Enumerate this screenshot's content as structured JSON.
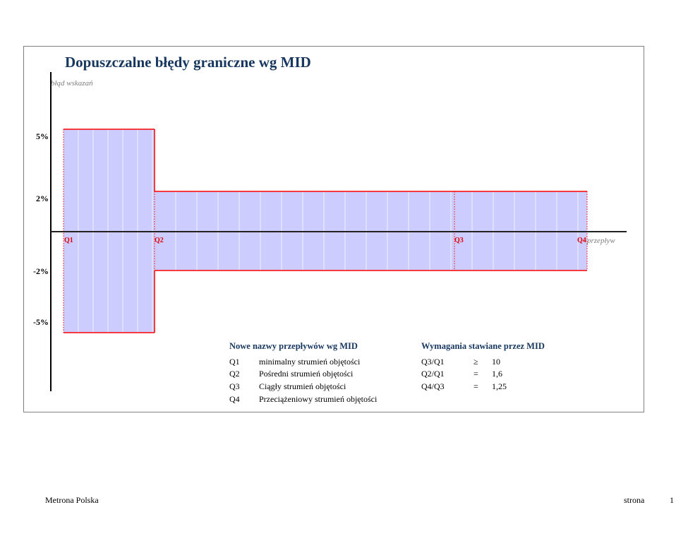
{
  "document": {
    "title": "Dopuszczalne błędy graniczne wg MID",
    "footer_left": "Metrona Polska",
    "footer_page_label": "strona",
    "footer_page_number": "1"
  },
  "chart_data": {
    "type": "area",
    "title": "Dopuszczalne błędy graniczne wg MID",
    "ylabel": "błąd wskazań",
    "xlabel": "przepływ",
    "y_ticks": [
      "5%",
      "2%",
      "-2%",
      "-5%"
    ],
    "x_ticks": [
      "Q1",
      "Q2",
      "Q3",
      "Q4"
    ],
    "ylim": [
      -7,
      8
    ],
    "bands": [
      {
        "from": "Q1",
        "to": "Q2",
        "upper": 5,
        "lower": -5
      },
      {
        "from": "Q2",
        "to": "Q4",
        "upper": 2,
        "lower": -2
      }
    ],
    "fill_color": "#ccccff",
    "edge_color": "#ff0000",
    "axis_color": "#000000"
  },
  "legend_left": {
    "heading": "Nowe nazwy przepływów wg MID",
    "rows": [
      {
        "code": "Q1",
        "desc": "minimalny strumień objętości"
      },
      {
        "code": "Q2",
        "desc": "Pośredni strumień objętości"
      },
      {
        "code": "Q3",
        "desc": "Ciągły strumień objętości"
      },
      {
        "code": "Q4",
        "desc": "Przeciążeniowy strumień objętości"
      }
    ]
  },
  "legend_right": {
    "heading": "Wymagania stawiane przez MID",
    "rows": [
      {
        "ratio": "Q3/Q1",
        "op": "≥",
        "value": "10"
      },
      {
        "ratio": "Q2/Q1",
        "op": "=",
        "value": "1,6"
      },
      {
        "ratio": "Q4/Q3",
        "op": "=",
        "value": "1,25"
      }
    ]
  }
}
